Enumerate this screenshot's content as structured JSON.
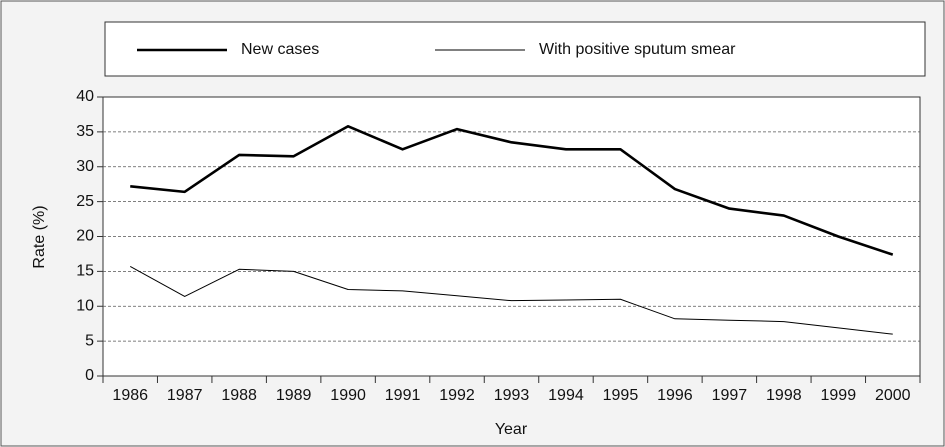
{
  "chart_data": {
    "type": "line",
    "x_label": "Year",
    "y_label": "Rate (%)",
    "categories": [
      "1986",
      "1987",
      "1988",
      "1989",
      "1990",
      "1991",
      "1992",
      "1993",
      "1994",
      "1995",
      "1996",
      "1997",
      "1998",
      "1999",
      "2000"
    ],
    "series": [
      {
        "name": "New cases",
        "color": "#000000",
        "line_width": 2.6,
        "values": [
          27.2,
          26.4,
          31.7,
          31.5,
          35.8,
          32.5,
          35.4,
          33.5,
          32.5,
          32.5,
          26.8,
          24.0,
          23.0,
          20.0,
          17.4
        ]
      },
      {
        "name": "With positive sputum smear",
        "color": "#000000",
        "line_width": 1,
        "values": [
          15.7,
          11.4,
          15.3,
          15.0,
          12.4,
          12.2,
          11.5,
          10.8,
          10.9,
          11.0,
          8.2,
          8.0,
          7.8,
          6.9,
          6.0
        ]
      }
    ],
    "ylim": [
      0,
      40
    ],
    "yticks": [
      0,
      5,
      10,
      15,
      20,
      25,
      30,
      35,
      40
    ],
    "grid": true,
    "legend": "top"
  }
}
